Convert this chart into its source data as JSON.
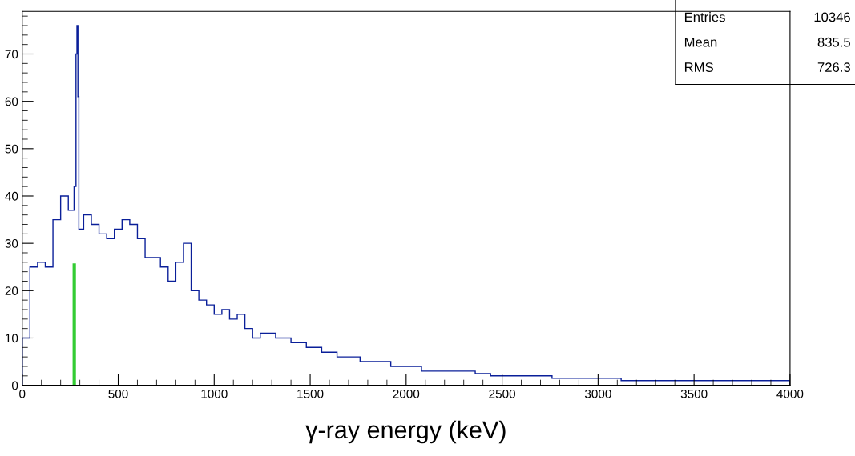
{
  "chart_data": {
    "type": "histogram",
    "xlabel": "γ-ray energy (keV)",
    "xlim": [
      0,
      4000
    ],
    "xticks": [
      0,
      500,
      1000,
      1500,
      2000,
      2500,
      3000,
      3500,
      4000
    ],
    "ylim": [
      0,
      79
    ],
    "yticks": [
      0,
      10,
      20,
      30,
      40,
      50,
      60,
      70
    ],
    "annotations": [
      "Entries 10346",
      "Mean 835.5",
      "RMS 726.3"
    ],
    "series": [
      {
        "color": "#0a1f99",
        "bins": [
          0,
          40,
          80,
          120,
          160,
          200,
          240,
          270,
          280,
          285,
          290,
          295,
          320,
          360,
          400,
          440,
          480,
          520,
          560,
          600,
          640,
          680,
          720,
          760,
          800,
          840,
          880,
          920,
          960,
          1000,
          1040,
          1080,
          1120,
          1160,
          1200,
          1240,
          1280,
          1320,
          1360,
          1400,
          1440,
          1480,
          1520,
          1560,
          1600,
          1640,
          1680,
          1720,
          1760,
          1800,
          1840,
          1880,
          1920,
          1960,
          2000,
          2040,
          2080,
          2120,
          2160,
          2200,
          2240,
          2280,
          2320,
          2360,
          2400,
          2440,
          2480,
          2520,
          2560,
          2600,
          2640,
          2680,
          2720,
          2760,
          2800,
          2840,
          2880,
          2920,
          2960,
          3000,
          3040,
          3080,
          3120,
          3160,
          3200,
          3240,
          3280,
          3320,
          3360,
          3400,
          3440,
          3480,
          3520,
          3560,
          3600,
          3640,
          3680,
          3720,
          3760,
          3800,
          3840,
          3880,
          3920,
          3960,
          4000
        ],
        "values": [
          10,
          25,
          26,
          25,
          35,
          40,
          37,
          42,
          70,
          76,
          61,
          33,
          36,
          34,
          32,
          31,
          33,
          35,
          34,
          31,
          27,
          27,
          25,
          22,
          26,
          30,
          20,
          18,
          17,
          15,
          16,
          14,
          15,
          12,
          10,
          11,
          11,
          10,
          10,
          9,
          9,
          8,
          8,
          7,
          7,
          6,
          6,
          6,
          5,
          5,
          5,
          5,
          4,
          4,
          4,
          4,
          3,
          3,
          3,
          3,
          3,
          3,
          3,
          2.5,
          2.5,
          2,
          2,
          2,
          2,
          2,
          2,
          2,
          2,
          1.5,
          1.5,
          1.5,
          1.5,
          1.5,
          1.5,
          1.5,
          1.5,
          1.5,
          1,
          1,
          1,
          1,
          1,
          1,
          1,
          1,
          1,
          1,
          1,
          1,
          1,
          1,
          1,
          1,
          1,
          1,
          1,
          1,
          1,
          1
        ]
      },
      {
        "type": "line",
        "color": "#33cc33",
        "x": [
          271,
          271
        ],
        "values": [
          0,
          25.4
        ]
      }
    ]
  }
}
